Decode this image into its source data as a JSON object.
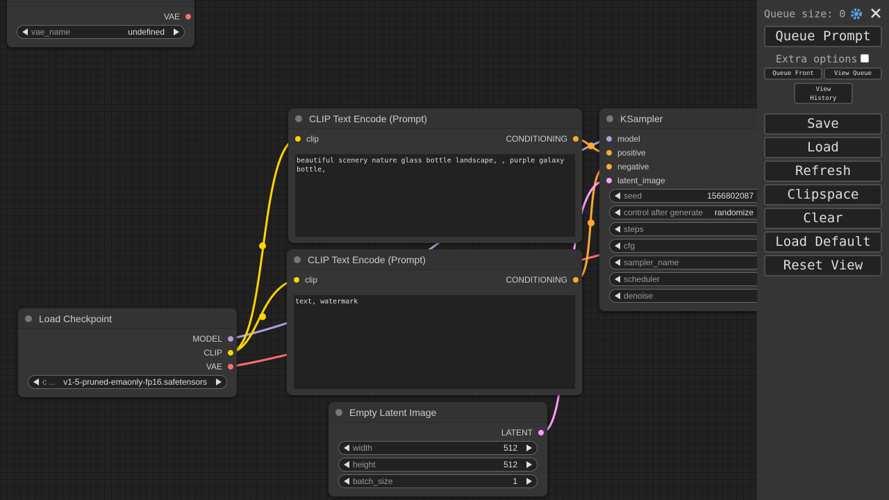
{
  "nodes": {
    "vae_loader": {
      "inputs": [],
      "outputs": [
        {
          "name": "VAE",
          "color": "#ff6e6e"
        }
      ],
      "widgets": [
        {
          "name": "vae_name",
          "value": "undefined"
        }
      ]
    },
    "clip_text_encode_positive": {
      "title": "CLIP Text Encode (Prompt)",
      "inputs": [
        {
          "name": "clip",
          "color": "#ffd500"
        }
      ],
      "outputs": [
        {
          "name": "CONDITIONING",
          "color": "#ffa931"
        }
      ],
      "widgets": [],
      "text": "beautiful scenery nature glass bottle landscape, , purple galaxy bottle,"
    },
    "clip_text_encode_negative": {
      "title": "CLIP Text Encode (Prompt)",
      "inputs": [
        {
          "name": "clip",
          "color": "#ffd500"
        }
      ],
      "outputs": [
        {
          "name": "CONDITIONING",
          "color": "#ffa931"
        }
      ],
      "widgets": [],
      "text": "text, watermark"
    },
    "load_checkpoint": {
      "title": "Load Checkpoint",
      "inputs": [],
      "outputs": [
        {
          "name": "MODEL",
          "color": "#b39ddb"
        },
        {
          "name": "CLIP",
          "color": "#ffd500"
        },
        {
          "name": "VAE",
          "color": "#ff6e6e"
        }
      ],
      "widgets": [
        {
          "name": "c ...",
          "value": "v1-5-pruned-emaonly-fp16.safetensors"
        }
      ]
    },
    "ksampler": {
      "title": "KSampler",
      "inputs": [
        {
          "name": "model",
          "color": "#b39ddb"
        },
        {
          "name": "positive",
          "color": "#ffa931"
        },
        {
          "name": "negative",
          "color": "#ffa931"
        },
        {
          "name": "latent_image",
          "color": "#ff9cf9"
        }
      ],
      "outputs": [],
      "widgets": [
        {
          "name": "seed",
          "value": "1566802087"
        },
        {
          "name": "control after generate",
          "value": "randomize"
        },
        {
          "name": "steps"
        },
        {
          "name": "cfg"
        },
        {
          "name": "sampler_name"
        },
        {
          "name": "scheduler"
        },
        {
          "name": "denoise"
        }
      ]
    },
    "empty_latent_image": {
      "title": "Empty Latent Image",
      "inputs": [],
      "outputs": [
        {
          "name": "LATENT",
          "color": "#ff9cf9"
        }
      ],
      "widgets": [
        {
          "name": "width",
          "value": 512
        },
        {
          "name": "height",
          "value": 512
        },
        {
          "name": "batch_size",
          "value": 1
        }
      ]
    }
  },
  "sidebar": {
    "queue_size": "Queue size: 0",
    "queue_prompt": "Queue Prompt",
    "extra_options": "Extra options",
    "queue_front": "Queue Front",
    "view_queue": "View Queue",
    "view_history": "View History",
    "buttons": [
      "Save",
      "Load",
      "Refresh",
      "Clipspace",
      "Clear",
      "Load Default",
      "Reset View"
    ]
  }
}
